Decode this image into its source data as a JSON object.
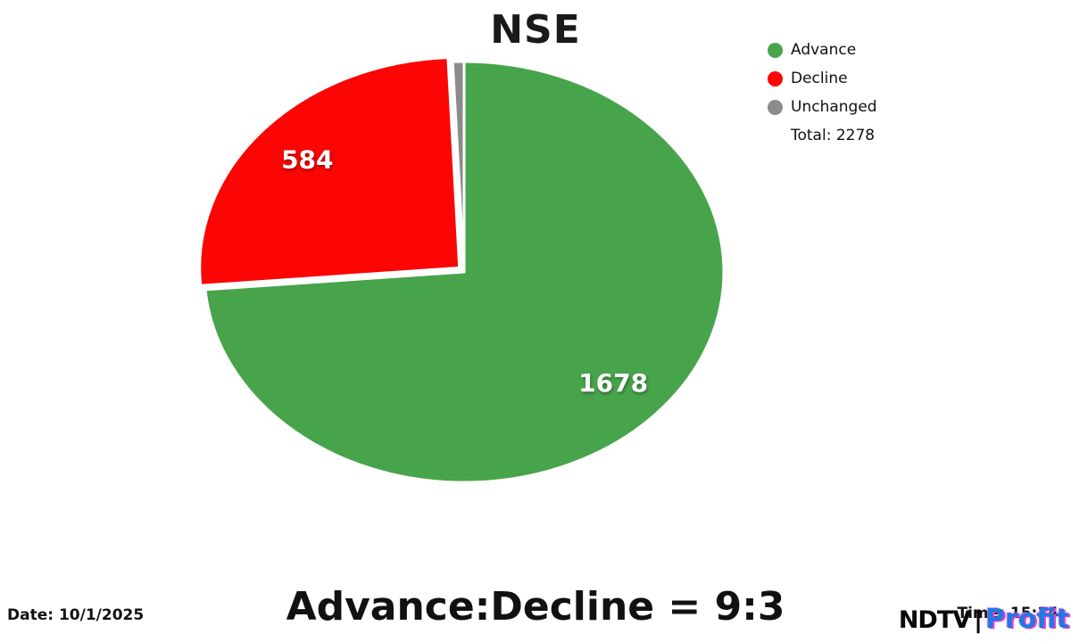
{
  "chart_data": {
    "type": "pie",
    "title": "NSE",
    "slices": [
      {
        "label": "Advance",
        "value": 1678,
        "data_label": "1678",
        "color": "#47a44b",
        "explode": 0
      },
      {
        "label": "Decline",
        "value": 584,
        "data_label": "584",
        "color": "#fb0505",
        "explode": 7
      },
      {
        "label": "Unchanged",
        "value": 16,
        "data_label": "",
        "color": "#8b8b8b",
        "explode": 0
      }
    ],
    "total": 2278,
    "total_label": "Total: 2278",
    "start_angle": "top",
    "direction": "clockwise",
    "legend_position": "top-right",
    "grid": false
  },
  "footer": {
    "ratio_text": "Advance:Decline = 9:3",
    "date_label": "Date: 10/1/2025",
    "time_label": "Time: 15:34"
  },
  "branding": {
    "ndtv": "NDTV",
    "separator": "|",
    "profit": "Profit"
  }
}
